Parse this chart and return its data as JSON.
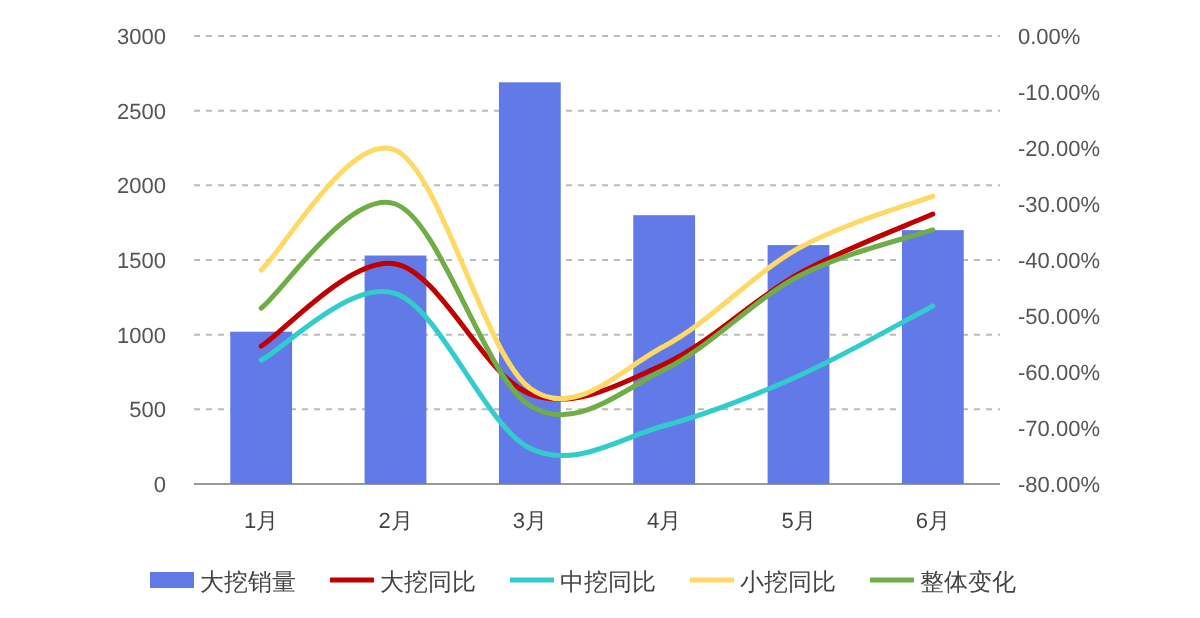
{
  "chart_data": {
    "type": "bar",
    "categories": [
      "1月",
      "2月",
      "3月",
      "4月",
      "5月",
      "6月"
    ],
    "series": [
      {
        "name": "大挖销量",
        "color": "#6279e8",
        "values": [
          1020,
          1530,
          2690,
          1800,
          1600,
          1700
        ]
      },
      {
        "name": "大挖同比",
        "type": "line",
        "axis": "y2",
        "color": "#c00000",
        "values": [
          -55.4,
          -40.7,
          -63.9,
          -58.6,
          -42.5,
          -31.8
        ]
      },
      {
        "name": "中挖同比",
        "type": "line",
        "axis": "y2",
        "color": "#33cccc",
        "values": [
          -57.9,
          -46,
          -73.6,
          -69.6,
          -60.7,
          -48.2
        ]
      },
      {
        "name": "小挖同比",
        "type": "line",
        "axis": "y2",
        "color": "#ffd966",
        "values": [
          -41.8,
          -20.4,
          -62.9,
          -55.4,
          -37.9,
          -28.6
        ]
      },
      {
        "name": "整体变化",
        "type": "line",
        "axis": "y2",
        "color": "#70ad47",
        "values": [
          -48.6,
          -30,
          -66,
          -59.6,
          -42.9,
          -34.6
        ]
      }
    ],
    "ylim": [
      0,
      3000
    ],
    "yticks": [
      0,
      500,
      1000,
      1500,
      2000,
      2500,
      3000
    ],
    "y2lim": [
      -80,
      0
    ],
    "y2ticks": [
      {
        "value": 0,
        "label": "0.00%"
      },
      {
        "value": -10,
        "label": "-10.00%"
      },
      {
        "value": -20,
        "label": "-20.00%"
      },
      {
        "value": -30,
        "label": "-30.00%"
      },
      {
        "value": -40,
        "label": "-40.00%"
      },
      {
        "value": -50,
        "label": "-50.00%"
      },
      {
        "value": -60,
        "label": "-60.00%"
      },
      {
        "value": -70,
        "label": "-70.00%"
      },
      {
        "value": -80,
        "label": "-80.00%"
      }
    ],
    "grid": "y",
    "legend": "bottom",
    "line_style": "solid",
    "marker": "none"
  }
}
